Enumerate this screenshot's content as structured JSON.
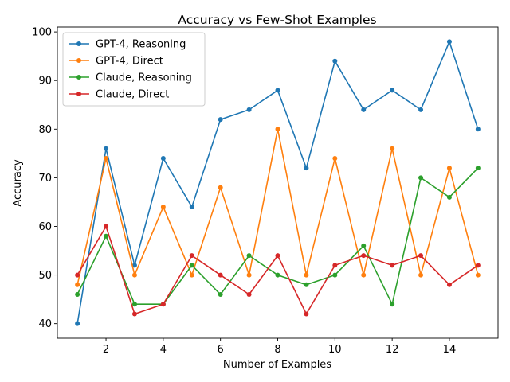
{
  "chart_data": {
    "type": "line",
    "title": "Accuracy vs Few-Shot Examples",
    "xlabel": "Number of Examples",
    "ylabel": "Accuracy",
    "x": [
      1,
      2,
      3,
      4,
      5,
      6,
      7,
      8,
      9,
      10,
      11,
      12,
      13,
      14,
      15
    ],
    "xlim": [
      0.3,
      15.7
    ],
    "ylim": [
      37,
      101
    ],
    "xticks": [
      2,
      4,
      6,
      8,
      10,
      12,
      14
    ],
    "yticks": [
      40,
      50,
      60,
      70,
      80,
      90,
      100
    ],
    "grid": false,
    "legend_position": "upper left",
    "series": [
      {
        "name": "GPT-4, Reasoning",
        "color": "#1f77b4",
        "values": [
          40,
          76,
          52,
          74,
          64,
          82,
          84,
          88,
          72,
          94,
          84,
          88,
          84,
          98,
          80
        ]
      },
      {
        "name": "GPT-4, Direct",
        "color": "#ff7f0e",
        "values": [
          48,
          74,
          50,
          64,
          50,
          68,
          50,
          80,
          50,
          74,
          50,
          76,
          50,
          72,
          50
        ]
      },
      {
        "name": "Claude, Reasoning",
        "color": "#2ca02c",
        "values": [
          46,
          58,
          44,
          44,
          52,
          46,
          54,
          50,
          48,
          50,
          56,
          44,
          70,
          66,
          72
        ]
      },
      {
        "name": "Claude, Direct",
        "color": "#d62728",
        "values": [
          50,
          60,
          42,
          44,
          54,
          50,
          46,
          54,
          42,
          52,
          54,
          52,
          54,
          48,
          52
        ]
      }
    ]
  }
}
